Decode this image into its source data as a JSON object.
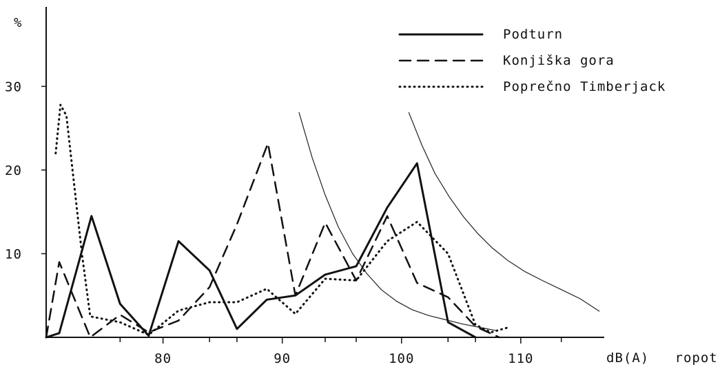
{
  "chart_data": {
    "type": "line",
    "title": "",
    "xlabel": "dB(A)   ropot",
    "ylabel": "%",
    "xlim": [
      70.2,
      117
    ],
    "ylim": [
      0,
      39.5
    ],
    "x_ticks": [
      {
        "value": 80,
        "label": "80"
      },
      {
        "value": 90,
        "label": "90"
      },
      {
        "value": 100,
        "label": "100"
      },
      {
        "value": 110,
        "label": "110"
      }
    ],
    "y_ticks": [
      {
        "value": 10,
        "label": "10"
      },
      {
        "value": 20,
        "label": "20"
      },
      {
        "value": 30,
        "label": "30"
      }
    ],
    "legend_position": "top-right",
    "series": [
      {
        "name": "Podturn",
        "style": "solid",
        "x": [
          70.2,
          71.3,
          74.0,
          76.4,
          78.8,
          81.3,
          83.9,
          86.2,
          88.7,
          91.1,
          93.6,
          96.2,
          98.8,
          101.3,
          103.9,
          106.2
        ],
        "y": [
          0,
          0.5,
          14.5,
          4.0,
          0.2,
          11.5,
          8.0,
          1.0,
          4.5,
          5.0,
          7.5,
          8.5,
          15.5,
          20.8,
          1.8,
          0
        ]
      },
      {
        "name": "Konjiška gora",
        "style": "dashed",
        "x": [
          70.2,
          71.3,
          73.9,
          76.4,
          78.8,
          81.3,
          83.9,
          86.2,
          88.8,
          91.1,
          93.6,
          96.2,
          98.8,
          101.3,
          103.9,
          106.2,
          108.2
        ],
        "y": [
          0,
          9.0,
          0.0,
          2.7,
          0.6,
          2.0,
          6.0,
          13.5,
          23.2,
          5.0,
          13.7,
          6.8,
          14.5,
          6.5,
          4.8,
          1.3,
          0
        ]
      },
      {
        "name": "Poprečno Timberjack",
        "style": "dotted",
        "x": [
          71.0,
          71.4,
          71.9,
          73.2,
          73.9,
          76.4,
          78.8,
          81.3,
          83.9,
          86.2,
          88.7,
          91.1,
          93.6,
          96.2,
          98.8,
          101.3,
          103.9,
          106.2,
          107.5,
          109.0
        ],
        "y": [
          22.0,
          27.8,
          26.5,
          10.0,
          2.5,
          1.8,
          0.3,
          3.2,
          4.2,
          4.2,
          5.8,
          2.8,
          7.0,
          6.8,
          11.5,
          13.8,
          10.0,
          1.5,
          0.6,
          1.2
        ]
      }
    ],
    "reference_curves": [
      {
        "x": [
          91.4,
          92.5,
          93.6,
          94.7,
          95.9,
          97.1,
          98.3,
          99.6,
          100.9,
          102.3,
          103.7,
          105.1,
          106.5,
          108.0
        ],
        "y": [
          26.9,
          21.5,
          17.0,
          13.2,
          10.0,
          7.6,
          5.7,
          4.3,
          3.3,
          2.6,
          2.1,
          1.6,
          1.2,
          0.8
        ]
      },
      {
        "x": [
          100.6,
          101.7,
          102.8,
          104.0,
          105.2,
          106.4,
          107.6,
          108.9,
          110.3,
          111.8,
          113.4,
          115.0,
          116.6
        ],
        "y": [
          26.9,
          23.0,
          19.6,
          16.8,
          14.4,
          12.4,
          10.7,
          9.2,
          7.9,
          6.8,
          5.7,
          4.6,
          3.1
        ]
      }
    ]
  }
}
